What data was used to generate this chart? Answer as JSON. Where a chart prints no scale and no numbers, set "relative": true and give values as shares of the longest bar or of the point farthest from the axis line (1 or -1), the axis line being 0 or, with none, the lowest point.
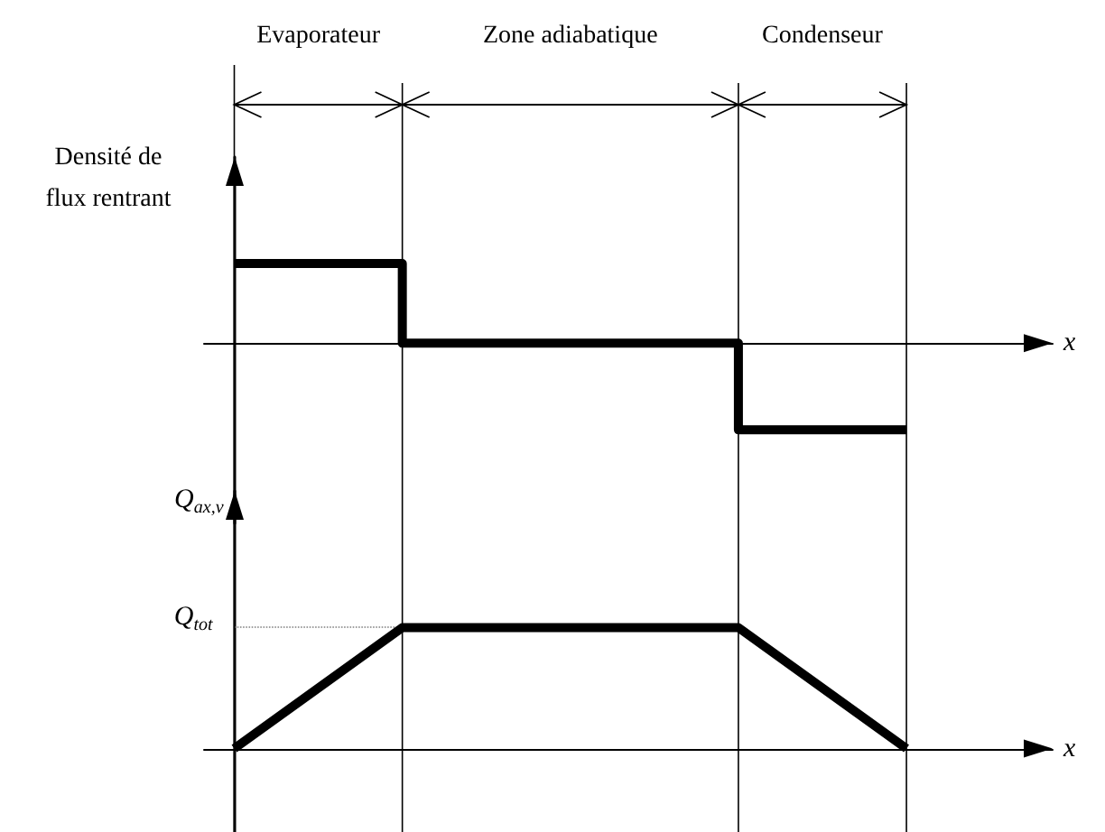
{
  "chart_data": [
    {
      "type": "step",
      "annotations": [
        "Evaporateur",
        "Zone adiabatique",
        "Condenseur"
      ],
      "ylabel": "Densité de\nflux rentrant",
      "xlabel": "x",
      "categories": [
        null,
        null,
        null,
        null,
        null
      ],
      "values": [
        0.92,
        0,
        0,
        -1,
        -1
      ],
      "color": "#000000",
      "relative": true,
      "tick_labels": false,
      "grid": "x"
    },
    {
      "type": "line",
      "ylabel": "Q$_{ax,v}$",
      "xlabel": "x",
      "categories": [
        null,
        null,
        null,
        null,
        null
      ],
      "values": [
        0,
        1,
        1,
        1,
        0
      ],
      "color": "#000000",
      "relative": true,
      "tick_labels": false,
      "ref_lines": [
        {
          "axis": "y",
          "value": 1,
          "label": "Q$_{tot}$",
          "color": "#808080",
          "line_style": "dotted"
        }
      ]
    }
  ]
}
